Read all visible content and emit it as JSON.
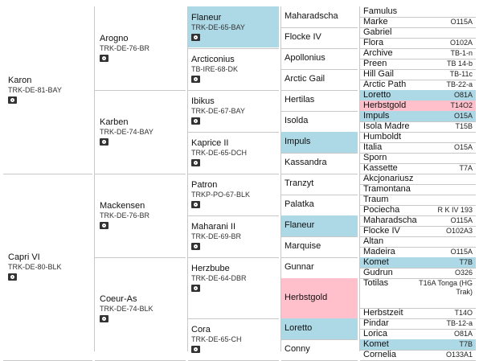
{
  "colors": {
    "line": "#c8c8c8",
    "highlight_blue": "#add8e6",
    "highlight_pink": "#ffc0cb"
  },
  "icons": {
    "photo": "camera-icon"
  },
  "gen1": [
    {
      "name": "Karon",
      "reg": "TRK-DE-81-BAY"
    },
    {
      "name": "Capri VI",
      "reg": "TRK-DE-80-BLK"
    }
  ],
  "gen2": [
    {
      "name": "Arogno",
      "reg": "TRK-DE-76-BR"
    },
    {
      "name": "Karben",
      "reg": "TRK-DE-74-BAY"
    },
    {
      "name": "Mackensen",
      "reg": "TRK-DE-76-BR"
    },
    {
      "name": "Coeur-As",
      "reg": "TRK-DE-74-BLK"
    }
  ],
  "gen3": [
    {
      "name": "Flaneur",
      "reg": "TRK-DE-65-BAY",
      "hl": "blue"
    },
    {
      "name": "Arcticonius",
      "reg": "TB-IRE-68-DK"
    },
    {
      "name": "Ibikus",
      "reg": "TRK-DE-67-BAY"
    },
    {
      "name": "Kaprice II",
      "reg": "TRK-DE-65-DCH"
    },
    {
      "name": "Patron",
      "reg": "TRKP-PO-67-BLK"
    },
    {
      "name": "Maharani II",
      "reg": "TRK-DE-69-BR"
    },
    {
      "name": "Herzbube",
      "reg": "TRK-DE-64-DBR"
    },
    {
      "name": "Cora",
      "reg": "TRK-DE-65-CH"
    }
  ],
  "gen4": [
    {
      "name": "Maharadscha"
    },
    {
      "name": "Flocke IV"
    },
    {
      "name": "Apollonius"
    },
    {
      "name": "Arctic Gail"
    },
    {
      "name": "Hertilas"
    },
    {
      "name": "Isolda"
    },
    {
      "name": "Impuls",
      "hl": "blue"
    },
    {
      "name": "Kassandra"
    },
    {
      "name": "Tranzyt"
    },
    {
      "name": "Palatka"
    },
    {
      "name": "Flaneur",
      "hl": "blue"
    },
    {
      "name": "Marquise"
    },
    {
      "name": "Gunnar"
    },
    {
      "name": "Herbstgold",
      "hl": "pink"
    },
    {
      "name": "Loretto",
      "hl": "blue"
    },
    {
      "name": "Conny"
    }
  ],
  "gen5": [
    {
      "name": "Famulus",
      "code": ""
    },
    {
      "name": "Marke",
      "code": "O115A"
    },
    {
      "name": "Gabriel",
      "code": ""
    },
    {
      "name": "Flora",
      "code": "O102A"
    },
    {
      "name": "Archive",
      "code": "TB-1-n"
    },
    {
      "name": "Preen",
      "code": "TB 14-b"
    },
    {
      "name": "Hill Gail",
      "code": "TB-11c"
    },
    {
      "name": "Arctic Path",
      "code": "TB-22-a"
    },
    {
      "name": "Loretto",
      "code": "O81A",
      "hl": "blue"
    },
    {
      "name": "Herbstgold",
      "code": "T14O2",
      "hl": "pink"
    },
    {
      "name": "Impuls",
      "code": "O15A",
      "hl": "blue"
    },
    {
      "name": "Isola Madre",
      "code": "T15B"
    },
    {
      "name": "Humboldt",
      "code": ""
    },
    {
      "name": "Italia",
      "code": "O15A"
    },
    {
      "name": "Sporn",
      "code": ""
    },
    {
      "name": "Kassette",
      "code": "T7A"
    },
    {
      "name": "Akcjonariusz",
      "code": ""
    },
    {
      "name": "Tramontana",
      "code": ""
    },
    {
      "name": "Traum",
      "code": ""
    },
    {
      "name": "Pociecha",
      "code": "R K IV 193"
    },
    {
      "name": "Maharadscha",
      "code": "O115A"
    },
    {
      "name": "Flocke IV",
      "code": "O102A3"
    },
    {
      "name": "Altan",
      "code": ""
    },
    {
      "name": "Madeira",
      "code": "O115A"
    },
    {
      "name": "Komet",
      "code": "T7B",
      "hl": "blue"
    },
    {
      "name": "Gudrun",
      "code": "O326"
    },
    {
      "name": "Totilas",
      "code": "T16A Tonga (HG Trak)"
    },
    {
      "name": "Herbstzeit",
      "code": "T14O"
    },
    {
      "name": "Pindar",
      "code": "TB-12-a"
    },
    {
      "name": "Lorica",
      "code": "O81A"
    },
    {
      "name": "Komet",
      "code": "T7B",
      "hl": "blue"
    },
    {
      "name": "Cornelia",
      "code": "O133A1"
    }
  ]
}
